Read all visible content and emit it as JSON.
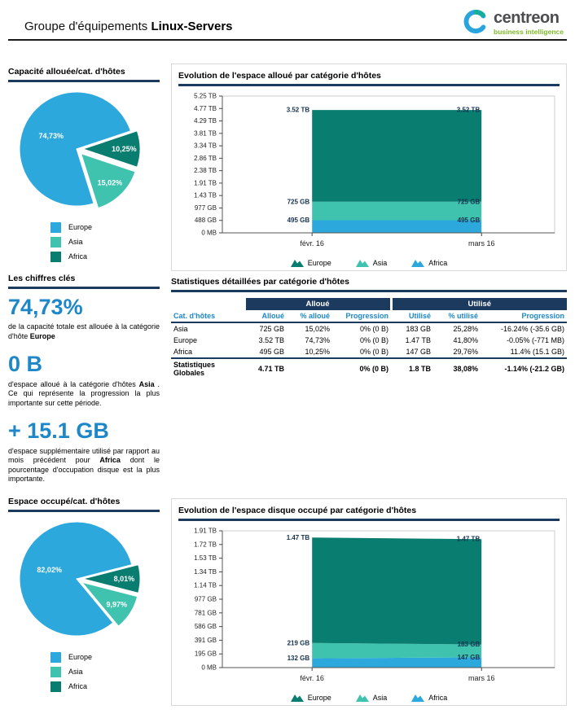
{
  "header": {
    "title_prefix": "Groupe d'équipements",
    "title_bold": "Linux-Servers",
    "logo": {
      "name": "centreon",
      "subtitle": "business intelligence"
    }
  },
  "colors": {
    "blue": "#2CA8DC",
    "turquoise": "#3FC3AF",
    "dark_teal": "#097D70",
    "accent_navy": "#1B3A5E",
    "accent_blue": "#1E87C8",
    "logo_green": "#7DB928",
    "logo_grey": "#4D4D4F"
  },
  "key_figures": {
    "title": "Les chiffres clés",
    "items": [
      {
        "value": "74,73%",
        "segments": [
          {
            "t": "de la capacité totale est allouée à la catégorie d'hôte "
          },
          {
            "t": "Europe",
            "b": true
          }
        ]
      },
      {
        "value": "0 B",
        "segments": [
          {
            "t": "d'espace alloué à la catégorie d'hôtes "
          },
          {
            "t": "Asia",
            "b": true
          },
          {
            "t": " . Ce qui représente la progression la plus importante sur cette période."
          }
        ]
      },
      {
        "value": "+ 15.1 GB",
        "segments": [
          {
            "t": "d'espace supplémentaire utilisé par rapport au mois précédent pour "
          },
          {
            "t": "Africa",
            "b": true
          },
          {
            "t": " dont le pourcentage d'occupation disque est la plus importante."
          }
        ]
      }
    ]
  },
  "stats_table": {
    "title": "Statistiques détaillées par catégorie d'hôtes",
    "group_headers": [
      {
        "label": "",
        "span": 1
      },
      {
        "label": "Alloué",
        "span": 3
      },
      {
        "label": "Utilisé",
        "span": 3
      }
    ],
    "columns": [
      "Cat. d'hôtes",
      "Alloué",
      "% alloué",
      "Progression",
      "Utilisé",
      "% utilisé",
      "Progression"
    ],
    "rows": [
      [
        "Asia",
        "725 GB",
        "15,02%",
        "0% (0 B)",
        "183 GB",
        "25,28%",
        "-16.24% (-35.6 GB)"
      ],
      [
        "Europe",
        "3.52 TB",
        "74,73%",
        "0% (0 B)",
        "1.47 TB",
        "41,80%",
        "-0.05% (-771 MB)"
      ],
      [
        "Africa",
        "495 GB",
        "10,25%",
        "0% (0 B)",
        "147 GB",
        "29,76%",
        "11.4% (15.1 GB)"
      ]
    ],
    "totals_row": [
      "Statistiques Globales",
      "4.71 TB",
      "",
      "0% (0 B)",
      "1.8 TB",
      "38,08%",
      "-1.14% (-21.2 GB)"
    ]
  },
  "chart_data": [
    {
      "id": "pie_allocated",
      "type": "pie",
      "title": "Capacité allouée/cat. d'hôtes",
      "labels": [
        "Europe",
        "Asia",
        "Africa"
      ],
      "values": [
        74.73,
        15.02,
        10.25
      ],
      "value_labels": [
        "74,73%",
        "15,02%",
        "10,25%"
      ],
      "colors": [
        "#2CA8DC",
        "#3FC3AF",
        "#097D70"
      ],
      "legend": [
        {
          "name": "Europe",
          "color": "#2CA8DC"
        },
        {
          "name": "Asia",
          "color": "#3FC3AF"
        },
        {
          "name": "Africa",
          "color": "#097D70"
        }
      ]
    },
    {
      "id": "area_allocated",
      "type": "area",
      "title": "Evolution de l'espace alloué par catégorie d'hôtes",
      "x": [
        "févr. 16",
        "mars 16"
      ],
      "y_ticks": [
        "0 MB",
        "488 GB",
        "977 GB",
        "1.43 TB",
        "1.91 TB",
        "2.38 TB",
        "2.86 TB",
        "3.34 TB",
        "3.81 TB",
        "4.29 TB",
        "4.77 TB",
        "5.25 TB"
      ],
      "y_max_gb": 5371,
      "ylim_gb": [
        0,
        5371
      ],
      "series": [
        {
          "name": "Africa",
          "color": "#2CA8DC",
          "values_gb": [
            495,
            495
          ],
          "labels": [
            "495 GB",
            "495 GB"
          ]
        },
        {
          "name": "Asia",
          "color": "#3FC3AF",
          "values_gb": [
            725,
            725
          ],
          "labels": [
            "725 GB",
            "725 GB"
          ]
        },
        {
          "name": "Europe",
          "color": "#097D70",
          "values_gb": [
            3604,
            3604
          ],
          "labels": [
            "3.52 TB",
            "3.52 TB"
          ]
        }
      ],
      "legend": [
        {
          "name": "Europe",
          "color": "#097D70"
        },
        {
          "name": "Asia",
          "color": "#3FC3AF"
        },
        {
          "name": "Africa",
          "color": "#2CA8DC"
        }
      ]
    },
    {
      "id": "pie_occupied",
      "type": "pie",
      "title": "Espace occupé/cat. d'hôtes",
      "labels": [
        "Europe",
        "Asia",
        "Africa"
      ],
      "values": [
        82.02,
        9.97,
        8.01
      ],
      "value_labels": [
        "82,02%",
        "9,97%",
        "8,01%"
      ],
      "colors": [
        "#2CA8DC",
        "#3FC3AF",
        "#097D70"
      ],
      "legend": [
        {
          "name": "Europe",
          "color": "#2CA8DC"
        },
        {
          "name": "Asia",
          "color": "#3FC3AF"
        },
        {
          "name": "Africa",
          "color": "#097D70"
        }
      ]
    },
    {
      "id": "area_occupied",
      "type": "area",
      "title": "Evolution de l'espace disque occupé par catégorie d'hôtes",
      "x": [
        "févr. 16",
        "mars 16"
      ],
      "y_ticks": [
        "0 MB",
        "195 GB",
        "391 GB",
        "586 GB",
        "781 GB",
        "977 GB",
        "1.14 TB",
        "1.34 TB",
        "1.53 TB",
        "1.72 TB",
        "1.91 TB"
      ],
      "y_max_gb": 1953,
      "ylim_gb": [
        0,
        1953
      ],
      "series": [
        {
          "name": "Africa",
          "color": "#2CA8DC",
          "values_gb": [
            132,
            147
          ],
          "labels": [
            "132 GB",
            "147 GB"
          ]
        },
        {
          "name": "Asia",
          "color": "#3FC3AF",
          "values_gb": [
            219,
            183
          ],
          "labels": [
            "219 GB",
            "183 GB"
          ]
        },
        {
          "name": "Europe",
          "color": "#097D70",
          "values_gb": [
            1505,
            1505
          ],
          "labels": [
            "1.47 TB",
            "1.47 TB"
          ]
        }
      ],
      "legend": [
        {
          "name": "Europe",
          "color": "#097D70"
        },
        {
          "name": "Asia",
          "color": "#3FC3AF"
        },
        {
          "name": "Africa",
          "color": "#2CA8DC"
        }
      ]
    }
  ]
}
